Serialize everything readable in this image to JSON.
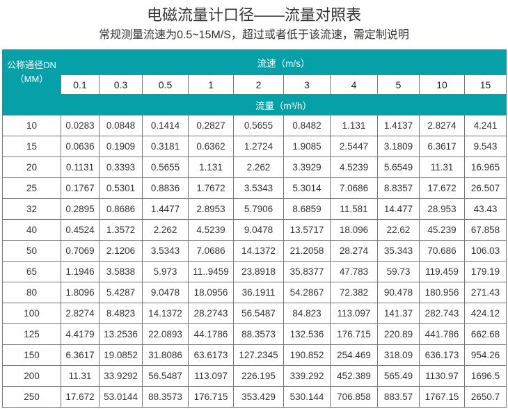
{
  "title": "电磁流量计口径——流量对照表",
  "subtitle": "常规测量流速为0.5~15M/S，超过或者低于该流速，需定制说明",
  "table": {
    "dn_header_line1": "公称通径DN",
    "dn_header_line2": "（MM）",
    "speed_header": "流速（m/s）",
    "flow_header": "流量（m³/h）",
    "speeds": [
      "0.1",
      "0.3",
      "0.5",
      "1",
      "2",
      "3",
      "4",
      "5",
      "10",
      "15"
    ],
    "rows": [
      [
        "10",
        "0.0283",
        "0.0848",
        "0.1414",
        "0.2827",
        "0.5655",
        "0.8482",
        "1.131",
        "1.4137",
        "2.8274",
        "4.241"
      ],
      [
        "15",
        "0.0636",
        "0.1909",
        "0.3181",
        "0.6362",
        "1.2724",
        "1.9085",
        "2.5447",
        "3.1809",
        "6.3617",
        "9.543"
      ],
      [
        "20",
        "0.1131",
        "0.3393",
        "0.5655",
        "1.131",
        "2.262",
        "3.3929",
        "4.5239",
        "5.6549",
        "11.31",
        "16.965"
      ],
      [
        "25",
        "0.1767",
        "0.5301",
        "0.8836",
        "1.7672",
        "3.5343",
        "5.3014",
        "7.0686",
        "8.8357",
        "17.672",
        "26.507"
      ],
      [
        "32",
        "0.2895",
        "0.8686",
        "1.4477",
        "2.8953",
        "5.7906",
        "8.6859",
        "11.581",
        "14.477",
        "28.953",
        "43.43"
      ],
      [
        "40",
        "0.4524",
        "1.3572",
        "2.262",
        "4.5239",
        "9.0478",
        "13.5717",
        "18.096",
        "22.62",
        "45.239",
        "67.858"
      ],
      [
        "50",
        "0.7069",
        "2.1206",
        "3.5343",
        "7.0686",
        "14.1372",
        "21.2058",
        "28.274",
        "35.343",
        "70.686",
        "106.03"
      ],
      [
        "65",
        "1.1946",
        "3.5838",
        "5.973",
        "11..9459",
        "23.8918",
        "35.8377",
        "47.783",
        "59.73",
        "119.459",
        "179.19"
      ],
      [
        "80",
        "1.8096",
        "5.4287",
        "9.0478",
        "18.0956",
        "36.1911",
        "54.2867",
        "72.382",
        "90.478",
        "180.956",
        "271.43"
      ],
      [
        "100",
        "2.8274",
        "8.4823",
        "14.1372",
        "28.2743",
        "56.5487",
        "84.823",
        "113.097",
        "141.37",
        "282.743",
        "424.12"
      ],
      [
        "125",
        "4.4179",
        "13.2536",
        "22.0893",
        "44.1786",
        "88.3573",
        "132.536",
        "176.715",
        "220.89",
        "441.786",
        "662.68"
      ],
      [
        "150",
        "6.3617",
        "19.0852",
        "31.8086",
        "63.6173",
        "127.2345",
        "190.852",
        "254.469",
        "318.09",
        "636.173",
        "954.26"
      ],
      [
        "200",
        "11.31",
        "33.9292",
        "56.5487",
        "113.097",
        "226.195",
        "339.292",
        "452.389",
        "565.49",
        "1130.97",
        "1696.5"
      ],
      [
        "250",
        "17.672",
        "53.0144",
        "88.3573",
        "176.715",
        "353.429",
        "530.144",
        "706.858",
        "883.57",
        "1767.15",
        "2650.7"
      ]
    ]
  },
  "colors": {
    "header_bg": "#06a0a9",
    "header_text": "#ffffff"
  }
}
